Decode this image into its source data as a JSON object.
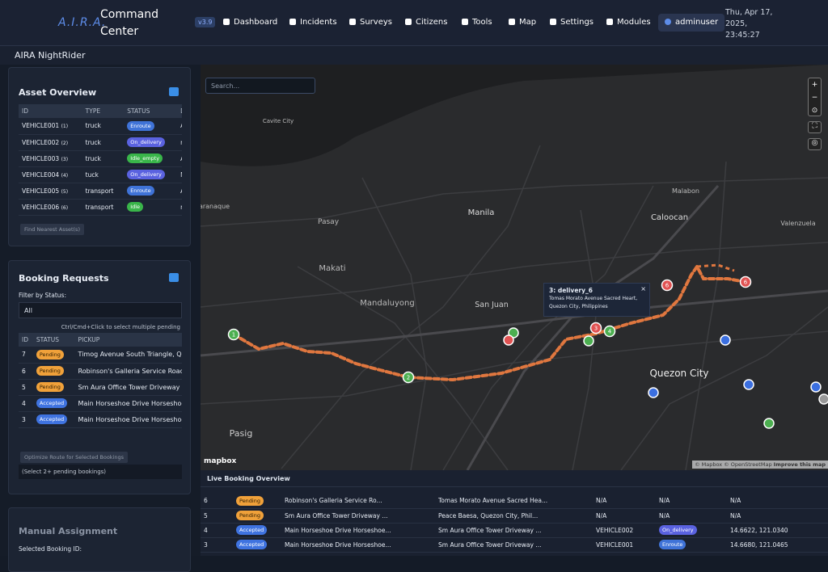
{
  "header": {
    "logo": "A.I.R.A.",
    "title": "Command Center",
    "version": "v3.9",
    "nav": [
      "Dashboard",
      "Incidents",
      "Surveys",
      "Citizens",
      "Tools",
      "Map",
      "Settings",
      "Modules"
    ],
    "user": "adminuser",
    "datetime": [
      "Thu, Apr 17,",
      "2025,",
      "23:45:27"
    ]
  },
  "subheader": "AIRA NightRider",
  "asset_overview": {
    "title": "Asset Overview",
    "columns": [
      "ID",
      "TYPE",
      "STATUS",
      "DRIV"
    ],
    "rows": [
      {
        "id": "VEHICLE001",
        "n": "(1)",
        "type": "truck",
        "status": "Enroute",
        "driver": "Admi"
      },
      {
        "id": "VEHICLE002",
        "n": "(2)",
        "type": "truck",
        "status": "On_delivery",
        "driver": "repor"
      },
      {
        "id": "VEHICLE003",
        "n": "(3)",
        "type": "truck",
        "status": "Idle_empty",
        "driver": "Admi"
      },
      {
        "id": "VEHICLE004",
        "n": "(4)",
        "type": "tuck",
        "status": "On_delivery",
        "driver": "N/A"
      },
      {
        "id": "VEHICLE005",
        "n": "(5)",
        "type": "transport",
        "status": "Enroute",
        "driver": "Admi"
      },
      {
        "id": "VEHICLE006",
        "n": "(6)",
        "type": "transport",
        "status": "Idle",
        "driver": "repor"
      }
    ],
    "button": "Find Nearest Asset(s)"
  },
  "booking_requests": {
    "title": "Booking Requests",
    "filter_label": "Filter by Status:",
    "filter_value": "All",
    "hint": "Ctrl/Cmd+Click to select multiple pending",
    "columns": [
      "ID",
      "STATUS",
      "PICKUP"
    ],
    "rows": [
      {
        "id": "7",
        "status": "Pending",
        "pickup": "Timog Avenue South Triangle, Quez"
      },
      {
        "id": "6",
        "status": "Pending",
        "pickup": "Robinson's Galleria Service Road Ug"
      },
      {
        "id": "5",
        "status": "Pending",
        "pickup": "Sm Aura Office Tower Driveway Pos"
      },
      {
        "id": "4",
        "status": "Accepted",
        "pickup": "Main Horseshoe Drive Horseshoe, C"
      },
      {
        "id": "3",
        "status": "Accepted",
        "pickup": "Main Horseshoe Drive Horseshoe, C"
      }
    ],
    "button": "Optimize Route for Selected Bookings",
    "note": "(Select 2+ pending bookings)"
  },
  "manual_assignment": {
    "title": "Manual Assignment",
    "label": "Selected Booking ID:"
  },
  "map": {
    "search": "Search...",
    "places": [
      "Cavite City",
      "Pasay",
      "Manila",
      "Caloocan",
      "Malabon",
      "Valenzuela",
      "Makati",
      "Mandaluyong",
      "San Juan",
      "Quezon City",
      "Pasig",
      "aranaque"
    ],
    "marker_labels": [
      "1",
      "2",
      "3",
      "4",
      "6",
      "6"
    ],
    "popup": {
      "title": "3: delivery_6",
      "lines": [
        "Tomas Morato Avenue Sacred Heart,",
        "Quezon City, Philippines"
      ]
    },
    "logo": "mapbox",
    "attribution": "© Mapbox © OpenStreetMap",
    "improve": "Improve this map"
  },
  "live_booking": {
    "title": "Live Booking Overview",
    "rows": [
      [
        "6",
        "Pending",
        "Robinson's Galleria Service Ro...",
        "Tomas Morato Avenue Sacred Hea...",
        "N/A",
        "N/A",
        "N/A"
      ],
      [
        "5",
        "Pending",
        "Sm Aura Office Tower Driveway ...",
        "Peace Baesa, Quezon City, Phil...",
        "N/A",
        "N/A",
        "N/A"
      ],
      [
        "4",
        "Accepted",
        "Main Horseshoe Drive Horseshoe...",
        "Sm Aura Office Tower Driveway ...",
        "VEHICLE002",
        "On_delivery",
        "14.6622, 121.0340"
      ],
      [
        "3",
        "Accepted",
        "Main Horseshoe Drive Horseshoe...",
        "Sm Aura Office Tower Driveway ...",
        "VEHICLE001",
        "Enroute",
        "14.6680, 121.0465"
      ]
    ]
  }
}
